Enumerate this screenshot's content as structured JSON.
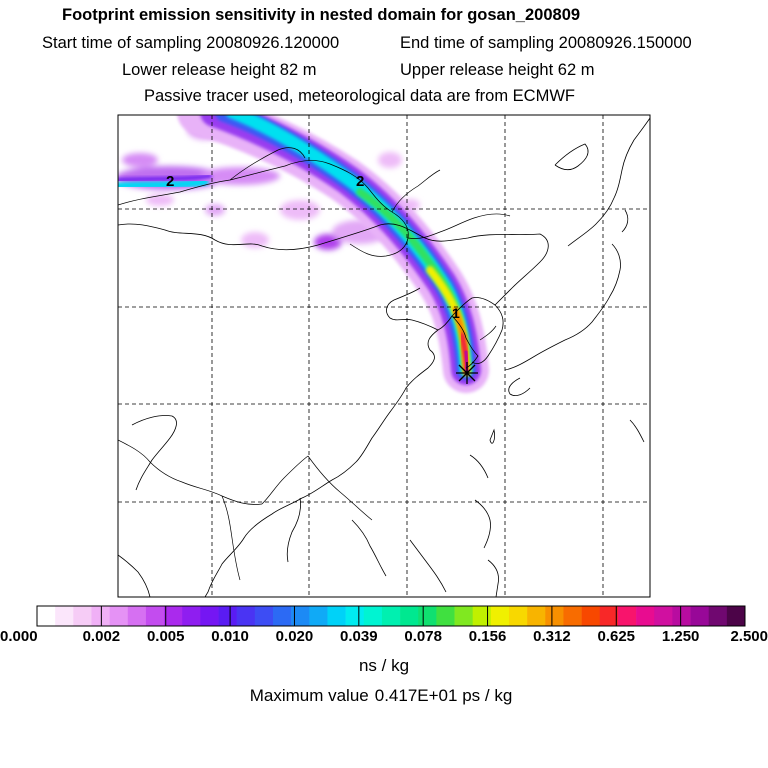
{
  "header": {
    "title": "Footprint emission sensitivity in nested domain for gosan_200809",
    "start_label": "Start time of sampling 20080926.120000",
    "end_label": "End time of sampling 20080926.150000",
    "lower_label": "Lower release height   82 m",
    "upper_label": "Upper release height   62 m",
    "tracer_label": "Passive tracer used, meteorological data are from ECMWF"
  },
  "map": {
    "trajectory_labels": [
      "2",
      "1"
    ],
    "release_marker": "asterisk-release-point"
  },
  "colorbar": {
    "tick_labels": [
      "0.000",
      "0.002",
      "0.005",
      "0.010",
      "0.020",
      "0.039",
      "0.078",
      "0.156",
      "0.312",
      "0.625",
      "1.250",
      "2.500"
    ],
    "colors": [
      "#ffffff",
      "#fbe6fb",
      "#f6ccf6",
      "#f0b0f6",
      "#e592f5",
      "#d670f2",
      "#c34cef",
      "#aa2aed",
      "#8f1ef0",
      "#7516f3",
      "#5a1cf3",
      "#4a34f3",
      "#3d4df4",
      "#2c6af4",
      "#1c8af5",
      "#10aaf6",
      "#00d2f8",
      "#00ecf0",
      "#00f4d2",
      "#00f0b0",
      "#00e890",
      "#10e070",
      "#40e040",
      "#80e820",
      "#c0f000",
      "#f0f000",
      "#f8d800",
      "#f8b400",
      "#f89000",
      "#f86c00",
      "#f84800",
      "#f82828",
      "#f8146c",
      "#e80c90",
      "#d010a0",
      "#b80ca0",
      "#980898",
      "#700870",
      "#4c0448"
    ],
    "units_label": "ns / kg",
    "max_prefix": "Maximum value",
    "max_value": "0.417E+01 ps / kg"
  }
}
